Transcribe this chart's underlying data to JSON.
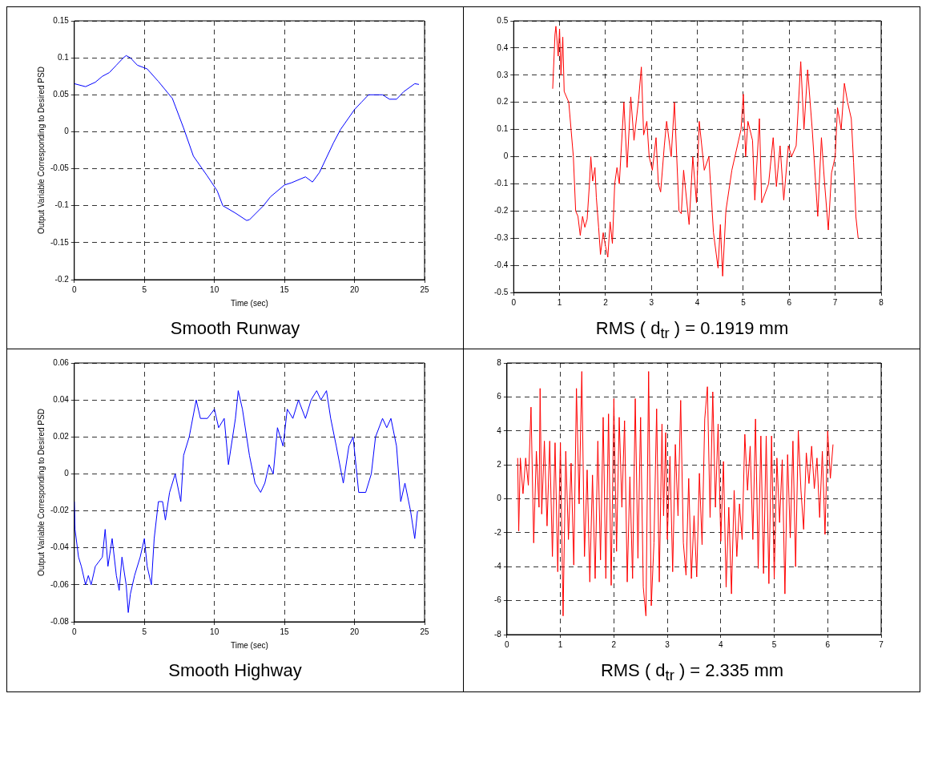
{
  "chart_data": [
    {
      "type": "line",
      "xlabel": "Time (sec)",
      "ylabel": "Output Variable Corresponding to Desired PSD",
      "annotations": [
        "Smooth Runway"
      ],
      "xlim": [
        0,
        25
      ],
      "xticks": [
        0,
        5,
        10,
        15,
        20,
        25
      ],
      "ylim": [
        -0.2,
        0.15
      ],
      "yticks": [
        -0.2,
        -0.15,
        -0.1,
        -0.05,
        0,
        0.05,
        0.1,
        0.15
      ],
      "grid": true,
      "legend": false,
      "series": [
        {
          "color": "#0000ff",
          "x": [
            0,
            0.8,
            1.5,
            2,
            2.5,
            3,
            3.5,
            3.7,
            4,
            4.5,
            5.2,
            6,
            7,
            7.2,
            7.8,
            8.5,
            9.5,
            10.2,
            10.6,
            11.5,
            12.3,
            12.5,
            13.5,
            14,
            15,
            15.5,
            16.5,
            17,
            17.5,
            18.5,
            19,
            20,
            20.5,
            21,
            22,
            22.5,
            23,
            23.5,
            24.3,
            24.6
          ],
          "values": [
            0.065,
            0.061,
            0.067,
            0.075,
            0.08,
            0.09,
            0.1,
            0.103,
            0.1,
            0.09,
            0.085,
            0.068,
            0.045,
            0.035,
            0.005,
            -0.033,
            -0.06,
            -0.08,
            -0.1,
            -0.11,
            -0.12,
            -0.119,
            -0.1,
            -0.088,
            -0.072,
            -0.069,
            -0.061,
            -0.068,
            -0.055,
            -0.015,
            0.003,
            0.03,
            0.04,
            0.05,
            0.05,
            0.044,
            0.044,
            0.054,
            0.065,
            0.064
          ]
        }
      ]
    },
    {
      "type": "line",
      "annotations": [
        "RMS ( d$_{tr}$ ) = 0.1919 mm"
      ],
      "xlim": [
        0,
        8
      ],
      "xticks": [
        0,
        1,
        2,
        3,
        4,
        5,
        6,
        7,
        8
      ],
      "ylim": [
        -0.5,
        0.5
      ],
      "yticks": [
        -0.5,
        -0.4,
        -0.3,
        -0.2,
        -0.1,
        0,
        0.1,
        0.2,
        0.3,
        0.4,
        0.5
      ],
      "grid": true,
      "legend": false,
      "series": [
        {
          "color": "#ff0000",
          "x": [
            0.85,
            0.9,
            0.92,
            0.97,
            1.0,
            1.03,
            1.07,
            1.1,
            1.2,
            1.3,
            1.35,
            1.4,
            1.45,
            1.5,
            1.55,
            1.6,
            1.65,
            1.68,
            1.72,
            1.77,
            1.8,
            1.85,
            1.89,
            1.95,
            2.0,
            2.05,
            2.1,
            2.15,
            2.2,
            2.25,
            2.3,
            2.4,
            2.47,
            2.55,
            2.62,
            2.72,
            2.78,
            2.83,
            2.9,
            2.95,
            3.02,
            3.1,
            3.15,
            3.2,
            3.28,
            3.33,
            3.43,
            3.5,
            3.6,
            3.65,
            3.7,
            3.82,
            3.9,
            3.98,
            4.04,
            4.15,
            4.25,
            4.35,
            4.45,
            4.5,
            4.55,
            4.62,
            4.75,
            4.95,
            5.0,
            5.05,
            5.1,
            5.2,
            5.25,
            5.35,
            5.4,
            5.55,
            5.65,
            5.72,
            5.8,
            5.88,
            5.98,
            6.05,
            6.15,
            6.25,
            6.32,
            6.4,
            6.5,
            6.62,
            6.7,
            6.77,
            6.85,
            6.92,
            7.0,
            7.05,
            7.13,
            7.2,
            7.27,
            7.35,
            7.4,
            7.45,
            7.5
          ],
          "values": [
            0.25,
            0.45,
            0.48,
            0.37,
            0.47,
            0.3,
            0.44,
            0.24,
            0.2,
            0.0,
            -0.2,
            -0.22,
            -0.29,
            -0.22,
            -0.26,
            -0.23,
            -0.1,
            0.0,
            -0.09,
            -0.04,
            -0.15,
            -0.26,
            -0.36,
            -0.28,
            -0.33,
            -0.37,
            -0.24,
            -0.32,
            -0.1,
            -0.04,
            -0.1,
            0.2,
            -0.04,
            0.22,
            0.06,
            0.21,
            0.33,
            0.08,
            0.13,
            0.0,
            -0.05,
            0.07,
            -0.1,
            -0.13,
            0.04,
            0.13,
            0.0,
            0.2,
            -0.2,
            -0.21,
            -0.05,
            -0.25,
            0.0,
            -0.17,
            0.13,
            -0.05,
            0.0,
            -0.28,
            -0.41,
            -0.25,
            -0.44,
            -0.2,
            -0.05,
            0.1,
            0.23,
            0.0,
            0.13,
            0.06,
            -0.16,
            0.14,
            -0.17,
            -0.1,
            0.07,
            -0.11,
            0.04,
            -0.16,
            0.04,
            0.0,
            0.04,
            0.35,
            0.1,
            0.32,
            0.1,
            -0.22,
            0.07,
            -0.1,
            -0.27,
            -0.06,
            0.0,
            0.18,
            0.1,
            0.27,
            0.2,
            0.14,
            -0.02,
            -0.22,
            -0.3
          ]
        }
      ]
    },
    {
      "type": "line",
      "xlabel": "Time (sec)",
      "ylabel": "Output Variable Corresponding to Desired PSD",
      "annotations": [
        "Smooth Highway"
      ],
      "xlim": [
        0,
        25
      ],
      "xticks": [
        0,
        5,
        10,
        15,
        20,
        25
      ],
      "ylim": [
        -0.08,
        0.06
      ],
      "yticks": [
        -0.08,
        -0.06,
        -0.04,
        -0.02,
        0,
        0.02,
        0.04,
        0.06
      ],
      "grid": true,
      "legend": false,
      "series": [
        {
          "color": "#0000ff",
          "x": [
            0,
            0.05,
            0.3,
            0.5,
            0.8,
            1.0,
            1.2,
            1.5,
            2.0,
            2.2,
            2.4,
            2.7,
            3.0,
            3.2,
            3.4,
            3.7,
            3.85,
            4.0,
            4.3,
            4.7,
            5.0,
            5.2,
            5.5,
            5.7,
            6.0,
            6.3,
            6.5,
            6.8,
            7.2,
            7.6,
            7.8,
            8.2,
            8.7,
            9.0,
            9.5,
            10.0,
            10.3,
            10.7,
            11.0,
            11.5,
            11.7,
            12.0,
            12.5,
            12.9,
            13.3,
            13.6,
            13.9,
            14.2,
            14.5,
            14.9,
            15.2,
            15.6,
            16.0,
            16.5,
            16.9,
            17.3,
            17.6,
            18.0,
            18.3,
            18.7,
            19.2,
            19.6,
            19.9,
            20.3,
            20.8,
            21.2,
            21.5,
            22.0,
            22.3,
            22.6,
            23.0,
            23.3,
            23.6,
            24.0,
            24.3,
            24.5
          ],
          "values": [
            -0.015,
            -0.03,
            -0.045,
            -0.05,
            -0.06,
            -0.055,
            -0.06,
            -0.05,
            -0.045,
            -0.03,
            -0.05,
            -0.035,
            -0.055,
            -0.063,
            -0.045,
            -0.06,
            -0.075,
            -0.065,
            -0.055,
            -0.045,
            -0.035,
            -0.05,
            -0.06,
            -0.035,
            -0.015,
            -0.015,
            -0.025,
            -0.01,
            0.0,
            -0.015,
            0.01,
            0.02,
            0.04,
            0.03,
            0.03,
            0.035,
            0.025,
            0.03,
            0.005,
            0.03,
            0.045,
            0.035,
            0.01,
            -0.005,
            -0.01,
            -0.005,
            0.005,
            0.0,
            0.025,
            0.015,
            0.035,
            0.03,
            0.04,
            0.03,
            0.04,
            0.045,
            0.04,
            0.045,
            0.03,
            0.015,
            -0.005,
            0.015,
            0.02,
            -0.01,
            -0.01,
            0.0,
            0.02,
            0.03,
            0.025,
            0.03,
            0.015,
            -0.015,
            -0.005,
            -0.02,
            -0.035,
            -0.02
          ]
        }
      ]
    },
    {
      "type": "line",
      "annotations": [
        "RMS ( d$_{tr}$ ) = 2.335 mm"
      ],
      "xlim": [
        0,
        7
      ],
      "xticks": [
        0,
        1,
        2,
        3,
        4,
        5,
        6,
        7
      ],
      "ylim": [
        -8,
        8
      ],
      "yticks": [
        -8,
        -6,
        -4,
        -2,
        0,
        2,
        4,
        6,
        8
      ],
      "grid": true,
      "legend": false,
      "series": [
        {
          "color": "#ff0000",
          "x": [
            0.2,
            0.22,
            0.25,
            0.3,
            0.35,
            0.4,
            0.45,
            0.5,
            0.55,
            0.6,
            0.62,
            0.65,
            0.7,
            0.75,
            0.8,
            0.85,
            0.9,
            0.95,
            1.0,
            1.05,
            1.1,
            1.15,
            1.2,
            1.25,
            1.3,
            1.35,
            1.4,
            1.45,
            1.5,
            1.55,
            1.6,
            1.65,
            1.7,
            1.75,
            1.8,
            1.85,
            1.9,
            1.95,
            2.0,
            2.05,
            2.1,
            2.15,
            2.2,
            2.25,
            2.3,
            2.35,
            2.4,
            2.45,
            2.5,
            2.55,
            2.6,
            2.65,
            2.7,
            2.75,
            2.8,
            2.85,
            2.9,
            2.93,
            2.97,
            3.0,
            3.05,
            3.1,
            3.15,
            3.2,
            3.25,
            3.3,
            3.35,
            3.4,
            3.45,
            3.5,
            3.55,
            3.6,
            3.65,
            3.7,
            3.75,
            3.8,
            3.85,
            3.9,
            3.95,
            4.0,
            4.05,
            4.1,
            4.15,
            4.2,
            4.25,
            4.3,
            4.35,
            4.4,
            4.45,
            4.5,
            4.55,
            4.6,
            4.65,
            4.7,
            4.75,
            4.8,
            4.85,
            4.9,
            4.95,
            5.0,
            5.05,
            5.1,
            5.15,
            5.2,
            5.25,
            5.3,
            5.35,
            5.4,
            5.45,
            5.5,
            5.55,
            5.6,
            5.65,
            5.7,
            5.75,
            5.8,
            5.85,
            5.9,
            5.95,
            6.0,
            6.05,
            6.1
          ],
          "values": [
            2.4,
            -1.9,
            2.4,
            0.3,
            2.4,
            0.8,
            5.4,
            -2.6,
            2.8,
            -0.5,
            6.5,
            -0.9,
            3.4,
            -1.6,
            3.4,
            -3.4,
            3.3,
            -4.3,
            3.3,
            -6.9,
            2.8,
            -2.4,
            2.1,
            -3.9,
            6.5,
            -0.3,
            7.5,
            -3.4,
            1.7,
            -4.9,
            1.4,
            -4.7,
            3.4,
            -3.6,
            4.8,
            -4.7,
            5.0,
            -5.1,
            5.9,
            -3.1,
            4.8,
            -0.5,
            4.6,
            -4.9,
            1.3,
            -4.7,
            5.9,
            -3.5,
            4.8,
            -5.2,
            -6.9,
            7.5,
            -6.3,
            -2.6,
            5.3,
            -4.9,
            4.4,
            -1.0,
            3.9,
            -2.4,
            2.5,
            -4.3,
            3.2,
            -1.0,
            5.8,
            -2.6,
            -4.5,
            1.2,
            -4.7,
            -1.0,
            -4.6,
            1.5,
            -2.7,
            4.7,
            6.6,
            -1.1,
            6.3,
            -0.5,
            4.4,
            -2.5,
            2.2,
            -5.2,
            -0.5,
            -5.6,
            0.5,
            -3.4,
            -0.3,
            -2.4,
            3.8,
            0.5,
            3.1,
            -2.4,
            4.7,
            -4.1,
            3.7,
            -4.4,
            3.7,
            -5.0,
            3.7,
            -4.7,
            2.4,
            -1.4,
            2.3,
            -5.6,
            2.6,
            -2.3,
            3.4,
            -4.0,
            4.0,
            0.5,
            -1.8,
            2.7,
            0.9,
            3.1,
            0.6,
            2.4,
            -1.1,
            2.8,
            -2.1,
            4.0,
            1.2,
            3.2
          ]
        }
      ]
    }
  ]
}
